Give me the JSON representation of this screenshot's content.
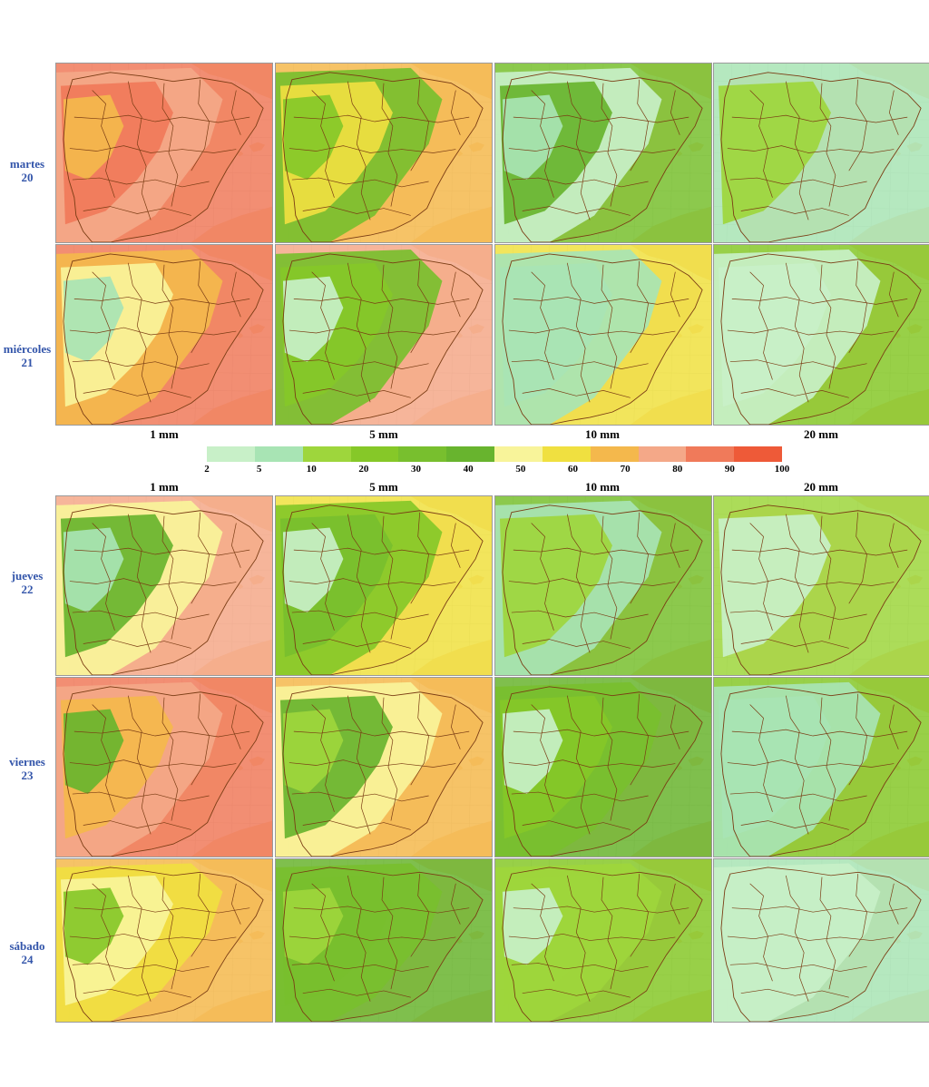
{
  "days": [
    {
      "name": "martes",
      "num": "20"
    },
    {
      "name": "miércoles",
      "num": "21"
    },
    {
      "name": "jueves",
      "num": "22"
    },
    {
      "name": "viernes",
      "num": "23"
    },
    {
      "name": "sábado",
      "num": "24"
    }
  ],
  "thresholds": [
    "1 mm",
    "5 mm",
    "10 mm",
    "20 mm"
  ],
  "legend": {
    "ticks": [
      "2",
      "5",
      "10",
      "20",
      "30",
      "40",
      "50",
      "60",
      "70",
      "80",
      "90",
      "100"
    ],
    "colors": [
      "#c8f0c8",
      "#a8e4b4",
      "#9ed63c",
      "#86c828",
      "#78bf2e",
      "#68b42e",
      "#f8f49a",
      "#f0e040",
      "#f4b84c",
      "#f4a888",
      "#f07a5a",
      "#ee5a38"
    ]
  },
  "map_colors": {
    "land_dry": "#f6cca0",
    "sea": "#ffffff",
    "grid": "#d4d4d4",
    "borders": "#7a3c14"
  },
  "panels": [
    [
      {
        "levels": [
          11,
          10,
          11,
          9
        ]
      },
      {
        "levels": [
          9,
          5,
          8,
          4
        ]
      },
      {
        "levels": [
          5,
          1,
          6,
          2
        ]
      },
      {
        "levels": [
          2,
          0,
          3,
          0
        ]
      }
    ],
    [
      {
        "levels": [
          11,
          9,
          7,
          2
        ]
      },
      {
        "levels": [
          10,
          5,
          4,
          1
        ]
      },
      {
        "levels": [
          8,
          2,
          2,
          0
        ]
      },
      {
        "levels": [
          4,
          1,
          1,
          0
        ]
      }
    ],
    [
      {
        "levels": [
          10,
          7,
          6,
          2
        ]
      },
      {
        "levels": [
          8,
          4,
          5,
          1
        ]
      },
      {
        "levels": [
          5,
          2,
          3,
          0
        ]
      },
      {
        "levels": [
          3,
          0,
          1,
          0
        ]
      }
    ],
    [
      {
        "levels": [
          11,
          10,
          9,
          6
        ]
      },
      {
        "levels": [
          9,
          7,
          6,
          3
        ]
      },
      {
        "levels": [
          6,
          5,
          4,
          1
        ]
      },
      {
        "levels": [
          4,
          2,
          2,
          0
        ]
      }
    ],
    [
      {
        "levels": [
          9,
          8,
          7,
          4
        ]
      },
      {
        "levels": [
          6,
          5,
          5,
          3
        ]
      },
      {
        "levels": [
          4,
          3,
          3,
          1
        ]
      },
      {
        "levels": [
          2,
          1,
          0,
          0
        ]
      }
    ]
  ]
}
